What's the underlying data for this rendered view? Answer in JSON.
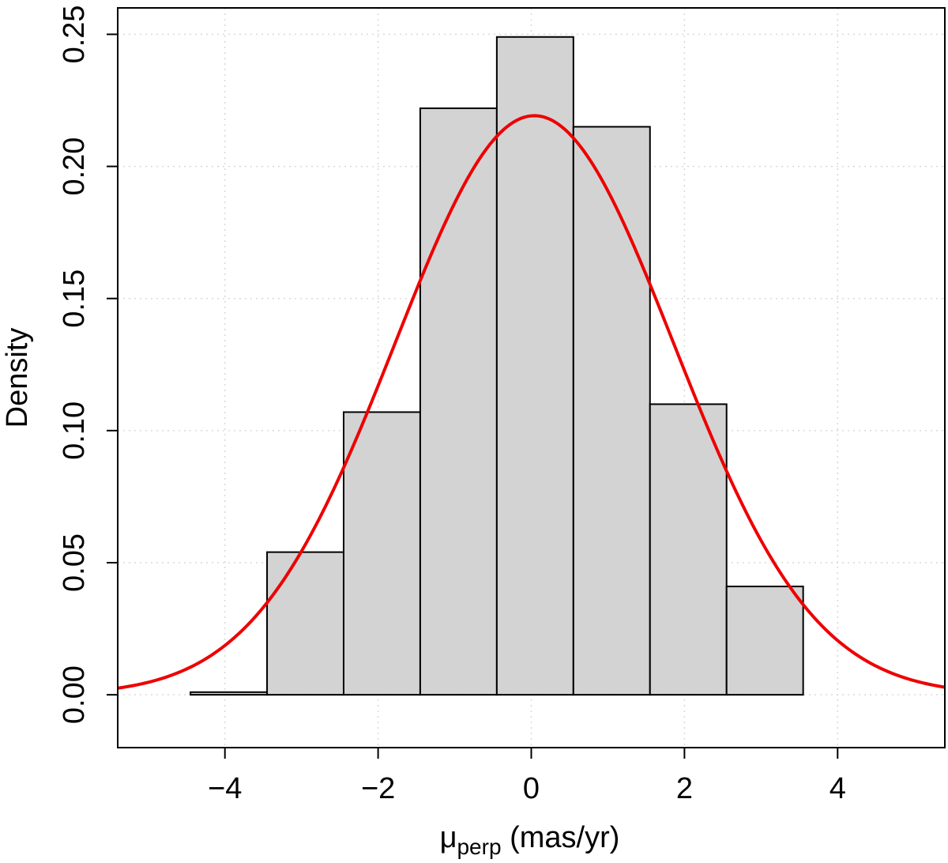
{
  "chart_data": {
    "type": "bar",
    "subtype": "histogram-with-density-curve",
    "xlabel": "μ",
    "xlabel_subscript": "perp",
    "xlabel_suffix": " (mas/yr)",
    "ylabel": "Density",
    "xlim": [
      -5.4,
      5.4
    ],
    "ylim": [
      -0.02,
      0.26
    ],
    "x_ticks": [
      -4,
      -2,
      0,
      2,
      4
    ],
    "y_ticks": [
      0.0,
      0.05,
      0.1,
      0.15,
      0.2,
      0.25
    ],
    "x_tick_labels": [
      "−4",
      "−2",
      "0",
      "2",
      "4"
    ],
    "y_tick_labels": [
      "0.00",
      "0.05",
      "0.10",
      "0.15",
      "0.20",
      "0.25"
    ],
    "grid": true,
    "bins": [
      {
        "x0": -4.45,
        "x1": -3.45,
        "density": 0.001
      },
      {
        "x0": -3.45,
        "x1": -2.45,
        "density": 0.054
      },
      {
        "x0": -2.45,
        "x1": -1.45,
        "density": 0.107
      },
      {
        "x0": -1.45,
        "x1": -0.45,
        "density": 0.222
      },
      {
        "x0": -0.45,
        "x1": 0.55,
        "density": 0.249
      },
      {
        "x0": 0.55,
        "x1": 1.55,
        "density": 0.215
      },
      {
        "x0": 1.55,
        "x1": 2.55,
        "density": 0.11
      },
      {
        "x0": 2.55,
        "x1": 3.55,
        "density": 0.041
      }
    ],
    "curve": {
      "type": "normal-density",
      "mean": 0.04,
      "sd": 1.82
    },
    "colors": {
      "bar_fill": "#d3d3d3",
      "bar_stroke": "#000000",
      "curve": "#ee0000",
      "grid": "#d9d9d9"
    }
  }
}
